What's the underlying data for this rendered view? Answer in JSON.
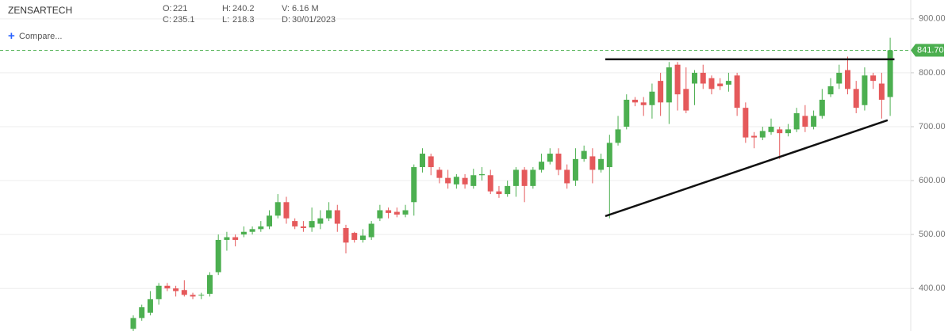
{
  "chart_data": {
    "type": "candlestick",
    "symbol": "ZENSARTECH",
    "compare": "Compare...",
    "ohlc_info": [
      {
        "label": "O:",
        "value": "221"
      },
      {
        "label": "C:",
        "value": "235.1"
      },
      {
        "label": "H:",
        "value": "240.2"
      },
      {
        "label": "L:",
        "value": "218.3"
      },
      {
        "label": "V:",
        "value": "6.16 M"
      },
      {
        "label": "D:",
        "value": "30/01/2023"
      }
    ],
    "up_color": "#4caf50",
    "down_color": "#e5595b",
    "open": [
      325,
      345,
      355,
      380,
      405,
      400,
      397,
      388,
      388,
      390,
      430,
      490,
      495,
      500,
      505,
      510,
      515,
      535,
      560,
      525,
      515,
      513,
      520,
      530,
      545,
      512,
      503,
      490,
      495,
      530,
      545,
      542,
      537,
      560,
      625,
      645,
      620,
      605,
      593,
      605,
      590,
      610,
      610,
      580,
      575,
      590,
      620,
      590,
      620,
      635,
      650,
      620,
      600,
      640,
      645,
      620,
      625,
      670,
      700,
      750,
      745,
      740,
      785,
      745,
      815,
      770,
      780,
      800,
      790,
      780,
      778,
      795,
      735,
      683,
      680,
      690,
      695,
      688,
      695,
      720,
      700,
      720,
      760,
      780,
      805,
      770,
      740,
      795,
      780,
      755
    ],
    "high": [
      350,
      370,
      395,
      410,
      410,
      405,
      415,
      392,
      392,
      430,
      500,
      505,
      500,
      515,
      515,
      525,
      545,
      575,
      570,
      530,
      525,
      550,
      545,
      560,
      555,
      518,
      505,
      510,
      525,
      555,
      550,
      550,
      555,
      630,
      660,
      650,
      625,
      620,
      612,
      612,
      622,
      625,
      620,
      590,
      600,
      625,
      625,
      625,
      650,
      660,
      660,
      630,
      660,
      665,
      660,
      650,
      685,
      720,
      760,
      755,
      755,
      780,
      800,
      820,
      820,
      810,
      805,
      815,
      795,
      790,
      800,
      800,
      745,
      690,
      700,
      715,
      700,
      705,
      735,
      740,
      730,
      770,
      790,
      815,
      830,
      785,
      810,
      800,
      800,
      865
    ],
    "low": [
      320,
      340,
      350,
      370,
      395,
      385,
      385,
      380,
      380,
      385,
      425,
      470,
      478,
      495,
      500,
      505,
      510,
      530,
      520,
      510,
      505,
      505,
      510,
      525,
      505,
      465,
      485,
      485,
      490,
      525,
      530,
      532,
      532,
      535,
      615,
      610,
      595,
      585,
      585,
      585,
      585,
      600,
      575,
      568,
      570,
      570,
      560,
      585,
      615,
      630,
      610,
      585,
      590,
      635,
      595,
      615,
      530,
      665,
      695,
      738,
      720,
      715,
      720,
      705,
      730,
      725,
      740,
      770,
      760,
      768,
      765,
      720,
      670,
      660,
      675,
      685,
      640,
      682,
      690,
      690,
      695,
      715,
      755,
      770,
      760,
      725,
      730,
      770,
      715,
      720
    ],
    "close": [
      345,
      365,
      380,
      405,
      400,
      395,
      388,
      385,
      388,
      425,
      490,
      495,
      490,
      505,
      510,
      515,
      535,
      560,
      530,
      515,
      512,
      525,
      530,
      545,
      520,
      485,
      490,
      498,
      520,
      545,
      540,
      537,
      545,
      625,
      650,
      625,
      605,
      595,
      607,
      593,
      610,
      612,
      580,
      575,
      590,
      620,
      590,
      620,
      635,
      650,
      620,
      595,
      640,
      655,
      620,
      640,
      670,
      695,
      750,
      745,
      740,
      765,
      745,
      810,
      760,
      730,
      800,
      780,
      770,
      775,
      785,
      735,
      680,
      680,
      692,
      700,
      688,
      695,
      725,
      700,
      720,
      750,
      775,
      800,
      770,
      735,
      795,
      785,
      750,
      841.7
    ],
    "last_price": {
      "value": 841.7,
      "label": "841.70"
    },
    "trendlines": [
      {
        "x": [
          55.5,
          89.5
        ],
        "y": [
          825,
          825
        ]
      },
      {
        "x": [
          55.5,
          88.7
        ],
        "y": [
          534,
          712
        ]
      }
    ],
    "ylim": [
      321,
      935
    ],
    "yticks": [
      {
        "value": 400,
        "label": "400.00"
      },
      {
        "value": 500,
        "label": "500.00"
      },
      {
        "value": 600,
        "label": "600.00"
      },
      {
        "value": 700,
        "label": "700.00"
      },
      {
        "value": 800,
        "label": "800.00"
      },
      {
        "value": 900,
        "label": "900.00"
      }
    ],
    "grid": true
  }
}
